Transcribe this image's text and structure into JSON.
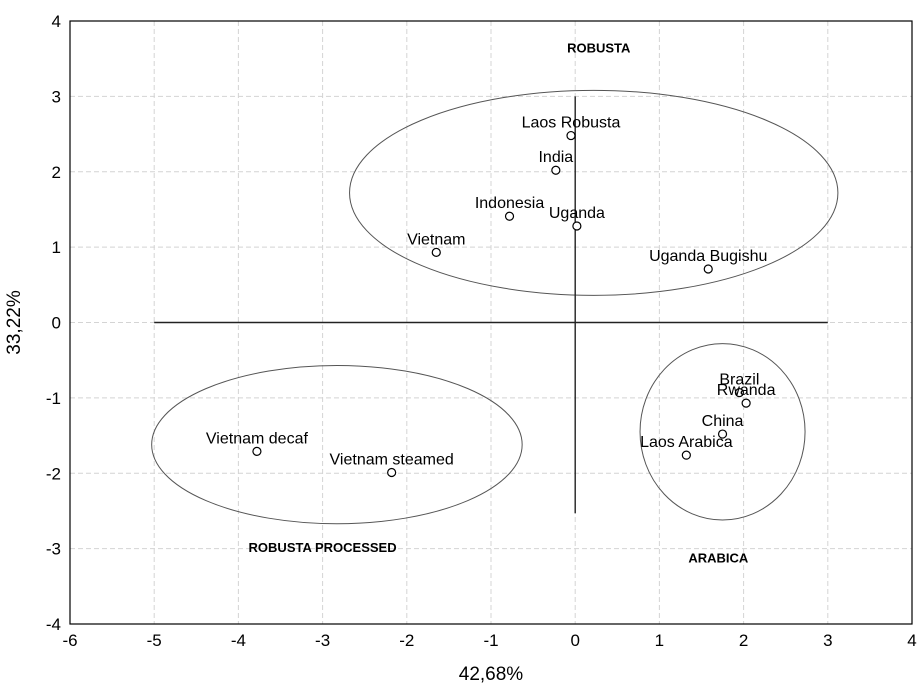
{
  "chart_data": {
    "type": "scatter",
    "title": "",
    "xlabel": "42,68%",
    "ylabel": "33,22%",
    "xlim": [
      -6,
      4
    ],
    "ylim": [
      -4,
      4
    ],
    "x_ticks": [
      -6,
      -5,
      -4,
      -3,
      -2,
      -1,
      0,
      1,
      2,
      3,
      4
    ],
    "y_ticks": [
      -4,
      -3,
      -2,
      -1,
      0,
      1,
      2,
      3,
      4
    ],
    "grid": true,
    "points": [
      {
        "label": "Laos Robusta",
        "x": -0.05,
        "y": 2.48
      },
      {
        "label": "India",
        "x": -0.23,
        "y": 2.02
      },
      {
        "label": "Indonesia",
        "x": -0.78,
        "y": 1.41
      },
      {
        "label": "Uganda",
        "x": 0.02,
        "y": 1.28
      },
      {
        "label": "Vietnam",
        "x": -1.65,
        "y": 0.93
      },
      {
        "label": "Uganda Bugishu",
        "x": 1.58,
        "y": 0.71
      },
      {
        "label": "Brazil",
        "x": 1.95,
        "y": -0.93
      },
      {
        "label": "Rwanda",
        "x": 2.03,
        "y": -1.07
      },
      {
        "label": "China",
        "x": 1.75,
        "y": -1.48
      },
      {
        "label": "Laos Arabica",
        "x": 1.32,
        "y": -1.76
      },
      {
        "label": "Vietnam decaf",
        "x": -3.78,
        "y": -1.71
      },
      {
        "label": "Vietnam steamed",
        "x": -2.18,
        "y": -1.99
      }
    ],
    "groups": [
      {
        "label": "ROBUSTA",
        "cx": 0.22,
        "cy": 1.72,
        "rx": 2.9,
        "ry": 1.36
      },
      {
        "label": "ROBUSTA PROCESSED",
        "cx": -2.83,
        "cy": -1.62,
        "rx": 2.2,
        "ry": 1.05
      },
      {
        "label": "ARABICA",
        "cx": 1.75,
        "cy": -1.45,
        "rx": 0.98,
        "ry": 1.17
      }
    ],
    "axis_lines": {
      "h_from": -5,
      "h_to": 3,
      "v_from": -2.53,
      "v_to": 3.0
    }
  }
}
